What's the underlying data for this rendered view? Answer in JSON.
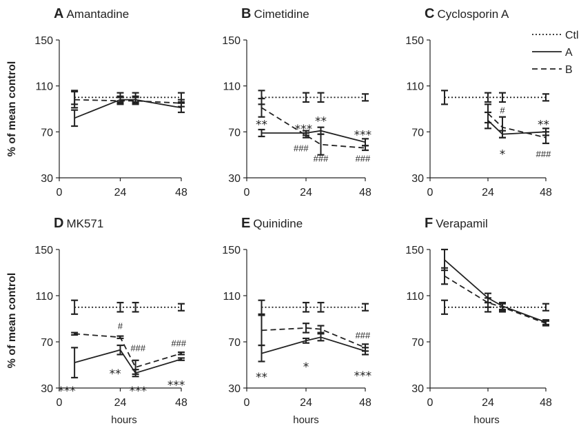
{
  "figure": {
    "ylabel": "% of mean control",
    "xlabel": "hours",
    "legend": {
      "placement": "top-right",
      "entries": [
        {
          "label": "Ctl",
          "style": "dotted"
        },
        {
          "label": "A",
          "style": "solid"
        },
        {
          "label": "B",
          "style": "dashed"
        }
      ]
    }
  },
  "chart_data": [
    {
      "type": "line",
      "letter": "A",
      "name": "Amantadine",
      "xlim": [
        0,
        48
      ],
      "ylim": [
        30,
        150
      ],
      "xticks": [
        0,
        24,
        48
      ],
      "yticks": [
        30,
        70,
        110,
        150
      ],
      "series": [
        {
          "name": "Ctl",
          "style": "dotted",
          "x": [
            6,
            24,
            30,
            48
          ],
          "y": [
            100,
            100,
            100,
            100
          ],
          "err": [
            6,
            4,
            4,
            4
          ]
        },
        {
          "name": "A",
          "style": "solid",
          "x": [
            6,
            24,
            30,
            48
          ],
          "y": [
            82,
            98,
            98,
            91
          ],
          "err": [
            7,
            3,
            3,
            4
          ]
        },
        {
          "name": "B",
          "style": "dashed",
          "x": [
            6,
            24,
            30,
            48
          ],
          "y": [
            98,
            97,
            97,
            95
          ],
          "err": [
            7,
            3,
            3,
            3
          ]
        }
      ],
      "annotations": []
    },
    {
      "type": "line",
      "letter": "B",
      "name": "Cimetidine",
      "xlim": [
        0,
        48
      ],
      "ylim": [
        30,
        150
      ],
      "xticks": [
        0,
        24,
        48
      ],
      "yticks": [
        30,
        70,
        110,
        150
      ],
      "series": [
        {
          "name": "Ctl",
          "style": "dotted",
          "x": [
            6,
            24,
            30,
            48
          ],
          "y": [
            100,
            100,
            100,
            100
          ],
          "err": [
            6,
            4,
            4,
            3
          ]
        },
        {
          "name": "A",
          "style": "solid",
          "x": [
            6,
            24,
            30,
            48
          ],
          "y": [
            69,
            69,
            71,
            61
          ],
          "err": [
            3,
            2,
            3,
            3
          ]
        },
        {
          "name": "B",
          "style": "dashed",
          "x": [
            6,
            24,
            30,
            48
          ],
          "y": [
            91,
            67,
            59,
            56
          ],
          "err": [
            8,
            2,
            9,
            2
          ]
        }
      ],
      "annotations": [
        {
          "text": "**",
          "x": 6,
          "y": 79,
          "kind": "star"
        },
        {
          "text": "***",
          "x": 23,
          "y": 75,
          "kind": "star"
        },
        {
          "text": "**",
          "x": 30,
          "y": 82,
          "kind": "star"
        },
        {
          "text": "***",
          "x": 47,
          "y": 70,
          "kind": "star"
        },
        {
          "text": "###",
          "x": 22,
          "y": 53,
          "kind": "hash"
        },
        {
          "text": "###",
          "x": 30,
          "y": 44,
          "kind": "hash"
        },
        {
          "text": "###",
          "x": 47,
          "y": 44,
          "kind": "hash"
        }
      ]
    },
    {
      "type": "line",
      "letter": "C",
      "name": "Cyclosporin A",
      "xlim": [
        0,
        48
      ],
      "ylim": [
        30,
        150
      ],
      "xticks": [
        0,
        24,
        48
      ],
      "yticks": [
        30,
        70,
        110,
        150
      ],
      "series": [
        {
          "name": "Ctl",
          "style": "dotted",
          "x": [
            6,
            24,
            30,
            48
          ],
          "y": [
            100,
            100,
            100,
            100
          ],
          "err": [
            6,
            4,
            4,
            3
          ]
        },
        {
          "name": "A",
          "style": "solid",
          "x": [
            24,
            30,
            48
          ],
          "y": [
            80,
            68,
            70
          ],
          "err": [
            7,
            3,
            3
          ]
        },
        {
          "name": "B",
          "style": "dashed",
          "x": [
            24,
            30,
            48
          ],
          "y": [
            86,
            74,
            65
          ],
          "err": [
            8,
            9,
            5
          ]
        }
      ],
      "annotations": [
        {
          "text": "#",
          "x": 30,
          "y": 86,
          "kind": "hash"
        },
        {
          "text": "**",
          "x": 47,
          "y": 79,
          "kind": "star"
        },
        {
          "text": "*",
          "x": 30,
          "y": 53,
          "kind": "star"
        },
        {
          "text": "###",
          "x": 47,
          "y": 48,
          "kind": "hash"
        }
      ]
    },
    {
      "type": "line",
      "letter": "D",
      "name": "MK571",
      "xlim": [
        0,
        48
      ],
      "ylim": [
        30,
        150
      ],
      "xticks": [
        0,
        24,
        48
      ],
      "yticks": [
        30,
        70,
        110,
        150
      ],
      "series": [
        {
          "name": "Ctl",
          "style": "dotted",
          "x": [
            6,
            24,
            30,
            48
          ],
          "y": [
            100,
            100,
            100,
            100
          ],
          "err": [
            6,
            4,
            4,
            3
          ]
        },
        {
          "name": "A",
          "style": "solid",
          "x": [
            6,
            24,
            30,
            48
          ],
          "y": [
            52,
            63,
            43,
            55
          ],
          "err": [
            13,
            4,
            3,
            1
          ]
        },
        {
          "name": "B",
          "style": "dashed",
          "x": [
            6,
            24,
            30,
            48
          ],
          "y": [
            77,
            74,
            48,
            60
          ],
          "err": [
            1,
            1,
            6,
            1
          ]
        }
      ],
      "annotations": [
        {
          "text": "#",
          "x": 24,
          "y": 81,
          "kind": "hash"
        },
        {
          "text": "###",
          "x": 31,
          "y": 62,
          "kind": "hash"
        },
        {
          "text": "###",
          "x": 47,
          "y": 66,
          "kind": "hash"
        },
        {
          "text": "***",
          "x": 3,
          "y": 30,
          "kind": "star"
        },
        {
          "text": "**",
          "x": 22,
          "y": 45,
          "kind": "star"
        },
        {
          "text": "***",
          "x": 31,
          "y": 30,
          "kind": "star"
        },
        {
          "text": "***",
          "x": 46,
          "y": 35,
          "kind": "star"
        }
      ]
    },
    {
      "type": "line",
      "letter": "E",
      "name": "Quinidine",
      "xlim": [
        0,
        48
      ],
      "ylim": [
        30,
        150
      ],
      "xticks": [
        0,
        24,
        48
      ],
      "yticks": [
        30,
        70,
        110,
        150
      ],
      "series": [
        {
          "name": "Ctl",
          "style": "dotted",
          "x": [
            6,
            24,
            30,
            48
          ],
          "y": [
            100,
            100,
            100,
            100
          ],
          "err": [
            6,
            4,
            4,
            3
          ]
        },
        {
          "name": "A",
          "style": "solid",
          "x": [
            6,
            24,
            30,
            48
          ],
          "y": [
            60,
            71,
            74,
            62
          ],
          "err": [
            7,
            2,
            3,
            3
          ]
        },
        {
          "name": "B",
          "style": "dashed",
          "x": [
            6,
            24,
            30,
            48
          ],
          "y": [
            80,
            82,
            81,
            65
          ],
          "err": [
            13,
            4,
            3,
            3
          ]
        }
      ],
      "annotations": [
        {
          "text": "###",
          "x": 47,
          "y": 73,
          "kind": "hash"
        },
        {
          "text": "**",
          "x": 6,
          "y": 42,
          "kind": "star"
        },
        {
          "text": "*",
          "x": 24,
          "y": 51,
          "kind": "star"
        },
        {
          "text": "***",
          "x": 47,
          "y": 43,
          "kind": "star"
        }
      ]
    },
    {
      "type": "line",
      "letter": "F",
      "name": "Verapamil",
      "xlim": [
        0,
        48
      ],
      "ylim": [
        30,
        150
      ],
      "xticks": [
        0,
        24,
        48
      ],
      "yticks": [
        30,
        70,
        110,
        150
      ],
      "series": [
        {
          "name": "Ctl",
          "style": "dotted",
          "x": [
            6,
            24,
            30,
            48
          ],
          "y": [
            100,
            100,
            100,
            100
          ],
          "err": [
            6,
            4,
            4,
            3
          ]
        },
        {
          "name": "A",
          "style": "solid",
          "x": [
            6,
            24,
            30,
            48
          ],
          "y": [
            141,
            108,
            101,
            87
          ],
          "err": [
            9,
            4,
            3,
            2
          ]
        },
        {
          "name": "B",
          "style": "dashed",
          "x": [
            6,
            24,
            30,
            48
          ],
          "y": [
            127,
            104,
            100,
            86
          ],
          "err": [
            7,
            4,
            3,
            2
          ]
        }
      ],
      "annotations": []
    }
  ]
}
